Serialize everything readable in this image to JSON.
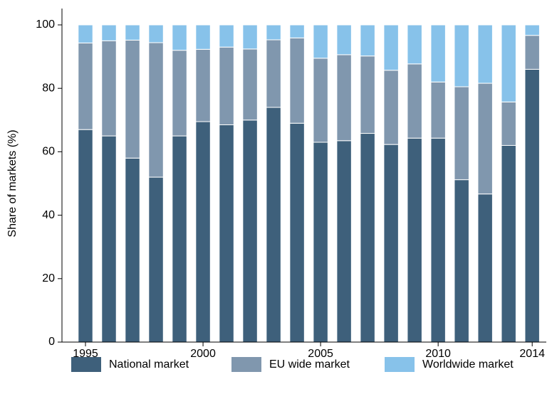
{
  "chart_data": {
    "type": "stacked_bar",
    "ylabel": "Share of markets (%)",
    "x": [
      1995,
      1996,
      1997,
      1998,
      1999,
      2000,
      2001,
      2002,
      2003,
      2004,
      2005,
      2006,
      2007,
      2008,
      2009,
      2010,
      2011,
      2012,
      2013,
      2014
    ],
    "xlim": [
      1994,
      2014.6
    ],
    "xticks": [
      1995,
      2000,
      2005,
      2010,
      2014
    ],
    "ylim": [
      0,
      100
    ],
    "yticks": [
      0,
      20,
      40,
      60,
      80,
      100
    ],
    "legend": "bottom",
    "series": [
      {
        "name": "National market",
        "color": "#3e607b",
        "values": [
          67,
          65,
          58,
          52,
          65,
          69.5,
          68.5,
          70,
          74,
          69,
          63,
          63.5,
          65.8,
          62.3,
          64.3,
          64.3,
          51.2,
          46.7,
          62,
          86
        ]
      },
      {
        "name": "EU wide market",
        "color": "#8097ae",
        "values": [
          27.3,
          30,
          37.2,
          42.4,
          27,
          22.8,
          24.5,
          22.4,
          21.3,
          26.9,
          26.5,
          27.1,
          24.4,
          23.4,
          23.4,
          17.7,
          29.3,
          34.9,
          13.7,
          10.7
        ]
      },
      {
        "name": "Worldwide market",
        "color": "#87c2ea",
        "values": [
          5.7,
          5,
          4.8,
          5.6,
          8,
          7.7,
          7,
          7.6,
          4.7,
          4.1,
          10.5,
          9.4,
          9.8,
          14.3,
          12.3,
          18,
          19.5,
          18.4,
          24.3,
          3.3
        ]
      }
    ]
  }
}
